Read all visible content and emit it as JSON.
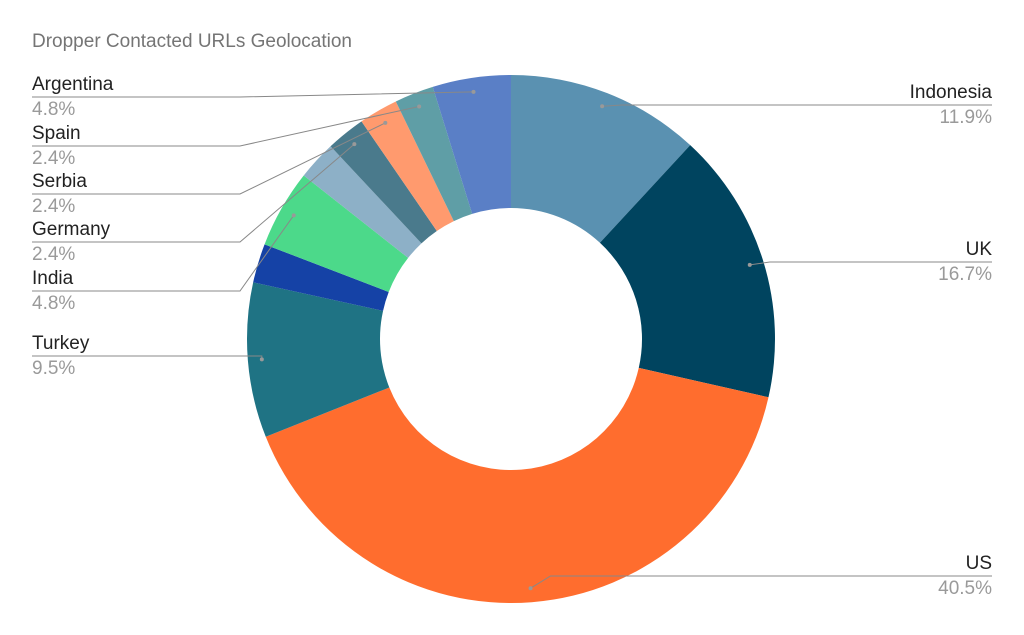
{
  "chart_data": {
    "type": "donut",
    "title": "Dropper Contacted URLs Geolocation",
    "categories": [
      "Indonesia",
      "UK",
      "US",
      "Turkey",
      null,
      "India",
      null,
      "Germany",
      "Serbia",
      "Spain",
      "Argentina"
    ],
    "values": [
      11.9,
      16.7,
      40.5,
      9.5,
      2.4,
      4.8,
      2.4,
      2.4,
      2.4,
      2.4,
      4.8
    ],
    "value_labels": [
      "11.9%",
      "16.7%",
      "40.5%",
      "9.5%",
      null,
      "4.8%",
      null,
      "2.4%",
      "2.4%",
      "2.4%",
      "4.8%"
    ],
    "colors": [
      "#5a91b1",
      "#00445f",
      "#ff6d2e",
      "#1f7384",
      "#1542a6",
      "#4cd98a",
      "#8db0c7",
      "#4a7a8c",
      "#ff9a6e",
      "#5f9ea6",
      "#5a7fc6"
    ]
  }
}
